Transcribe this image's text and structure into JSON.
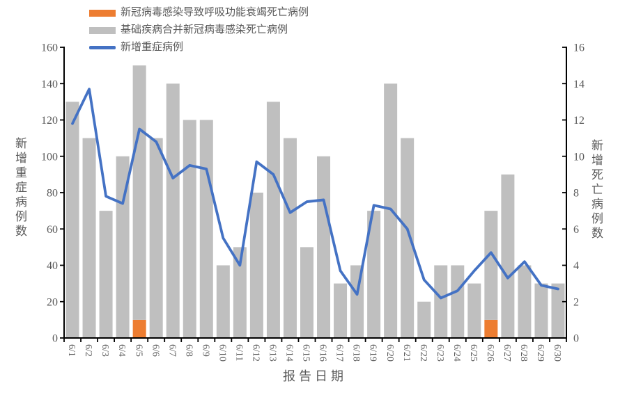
{
  "colors": {
    "respiratory_death_bar": "#ED7D31",
    "underlying_disease_death_bar": "#BFBFBF",
    "severe_case_line": "#4472C4",
    "axis_line": "#000000",
    "axis_text": "#595959"
  },
  "chart_data": {
    "type": "combo-stacked-bar-line",
    "title": "",
    "categories": [
      "6/1",
      "6/2",
      "6/3",
      "6/4",
      "6/5",
      "6/6",
      "6/7",
      "6/8",
      "6/9",
      "6/10",
      "6/11",
      "6/12",
      "6/13",
      "6/14",
      "6/15",
      "6/16",
      "6/17",
      "6/18",
      "6/19",
      "6/20",
      "6/21",
      "6/22",
      "6/23",
      "6/24",
      "6/25",
      "6/26",
      "6/27",
      "6/28",
      "6/29",
      "6/30"
    ],
    "bar_mode": "stacked",
    "grid": "off",
    "legend_position": "top-left",
    "series": [
      {
        "name": "新冠病毒感染导致呼吸功能衰竭死亡病例",
        "type": "bar",
        "axis": "right",
        "color": "#ED7D31",
        "values": [
          0,
          0,
          0,
          0,
          1,
          0,
          0,
          0,
          0,
          0,
          0,
          0,
          0,
          0,
          0,
          0,
          0,
          0,
          0,
          0,
          0,
          0,
          0,
          0,
          0,
          1,
          0,
          0,
          0,
          0
        ]
      },
      {
        "name": "基础疾病合并新冠病毒感染死亡病例",
        "type": "bar",
        "axis": "right",
        "color": "#BFBFBF",
        "values": [
          13,
          11,
          7,
          10,
          14,
          11,
          14,
          12,
          12,
          4,
          5,
          8,
          13,
          11,
          5,
          10,
          3,
          4,
          7,
          14,
          11,
          2,
          4,
          4,
          3,
          6,
          9,
          4,
          3,
          3
        ]
      },
      {
        "name": "新增重症病例",
        "type": "line",
        "axis": "left",
        "color": "#4472C4",
        "values": [
          118,
          137,
          78,
          74,
          115,
          108,
          88,
          95,
          93,
          55,
          40,
          97,
          90,
          69,
          75,
          76,
          37,
          24,
          73,
          71,
          60,
          32,
          22,
          26,
          37,
          47,
          33,
          42,
          29,
          27
        ]
      }
    ],
    "left_axis": {
      "title": "新增重症病例数",
      "min": 0,
      "max": 160,
      "step": 20
    },
    "right_axis": {
      "title": "新增死亡病例数",
      "min": 0,
      "max": 16,
      "step": 2
    },
    "x_axis": {
      "title": "报告日期"
    }
  }
}
